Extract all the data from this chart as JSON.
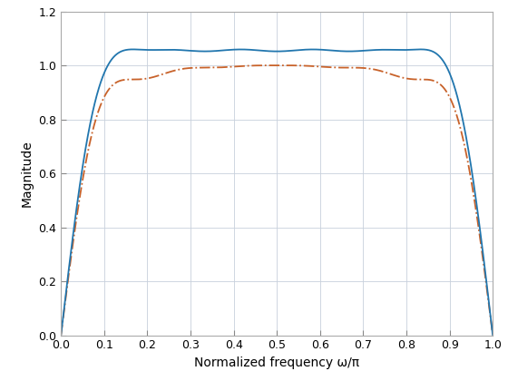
{
  "title": "",
  "xlabel": "Normalized frequency ω/π",
  "ylabel": "Magnitude",
  "xlim": [
    0,
    1
  ],
  "ylim": [
    0,
    1.2
  ],
  "xticks": [
    0,
    0.1,
    0.2,
    0.3,
    0.4,
    0.5,
    0.6,
    0.7,
    0.8,
    0.9,
    1.0
  ],
  "yticks": [
    0,
    0.2,
    0.4,
    0.6,
    0.8,
    1.0,
    1.2
  ],
  "hamming_color": "#2176AE",
  "bartlett_color": "#C8622A",
  "hamming_style": "-",
  "bartlett_style": "-.",
  "linewidth": 1.3,
  "grid_color": "#c8d0dc",
  "bg_color": "#ffffff",
  "N": 25
}
